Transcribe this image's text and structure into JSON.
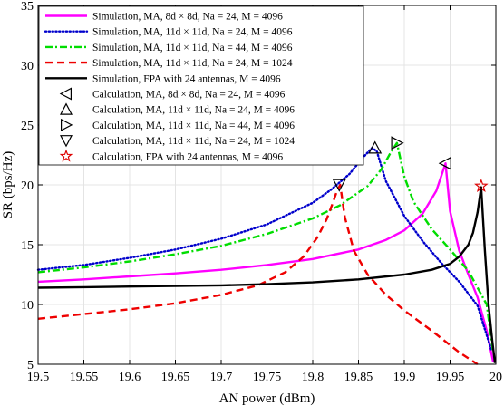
{
  "chart_data": {
    "type": "line",
    "xlabel": "AN power (dBm)",
    "ylabel": "SR (bps/Hz)",
    "xlim": [
      19.5,
      20
    ],
    "ylim": [
      5,
      35
    ],
    "xticks": [
      "19.5",
      "19.55",
      "19.6",
      "19.65",
      "19.7",
      "19.75",
      "19.8",
      "19.85",
      "19.9",
      "19.95",
      "20"
    ],
    "yticks": [
      "5",
      "10",
      "15",
      "20",
      "25",
      "30",
      "35"
    ],
    "grid": true,
    "legend_position": "top-left",
    "series": [
      {
        "name": "Simulation, MA, 8d × 8d, Na = 24, M = 4096",
        "color": "#ff00ff",
        "style": "solid",
        "x": [
          19.5,
          19.55,
          19.6,
          19.65,
          19.7,
          19.75,
          19.8,
          19.85,
          19.88,
          19.9,
          19.92,
          19.935,
          19.945,
          19.95,
          19.96,
          19.97,
          19.98,
          19.99,
          19.997
        ],
        "y": [
          11.9,
          12.1,
          12.35,
          12.6,
          12.9,
          13.3,
          13.8,
          14.6,
          15.4,
          16.2,
          17.6,
          19.5,
          21.8,
          17.8,
          14.5,
          12.5,
          10.6,
          7.8,
          5.2
        ]
      },
      {
        "name": "Simulation, MA, 11d × 11d, Na = 24, M = 4096",
        "color": "#0000cc",
        "style": "dotted",
        "x": [
          19.5,
          19.55,
          19.6,
          19.65,
          19.7,
          19.75,
          19.8,
          19.82,
          19.84,
          19.855,
          19.865,
          19.87,
          19.88,
          19.9,
          19.92,
          19.94,
          19.96,
          19.98,
          19.995
        ],
        "y": [
          12.9,
          13.3,
          13.9,
          14.6,
          15.5,
          16.7,
          18.5,
          19.6,
          20.9,
          22.3,
          23.1,
          22.8,
          20.3,
          17.4,
          15.3,
          13.5,
          11.9,
          9.9,
          6.2
        ]
      },
      {
        "name": "Simulation, MA, 11d × 11d, Na = 44, M = 4096",
        "color": "#00dd00",
        "style": "dashdot",
        "x": [
          19.5,
          19.55,
          19.6,
          19.65,
          19.7,
          19.75,
          19.8,
          19.83,
          19.86,
          19.875,
          19.885,
          19.892,
          19.9,
          19.91,
          19.93,
          19.95,
          19.97,
          19.99,
          19.997
        ],
        "y": [
          12.7,
          13.1,
          13.6,
          14.2,
          14.9,
          15.9,
          17.2,
          18.3,
          19.9,
          21.3,
          22.7,
          23.5,
          20.7,
          18.6,
          16.3,
          14.6,
          12.8,
          10.0,
          6.0
        ]
      },
      {
        "name": "Simulation, MA, 11d × 11d, Na = 24, M = 1024",
        "color": "#ee0000",
        "style": "dashed",
        "x": [
          19.5,
          19.55,
          19.6,
          19.65,
          19.7,
          19.74,
          19.77,
          19.79,
          19.805,
          19.815,
          19.822,
          19.826,
          19.83,
          19.835,
          19.845,
          19.86,
          19.88,
          19.9,
          19.93,
          19.96,
          19.98
        ],
        "y": [
          8.8,
          9.2,
          9.6,
          10.1,
          10.8,
          11.6,
          12.7,
          14.0,
          15.6,
          17.1,
          18.5,
          19.4,
          20.0,
          17.3,
          14.5,
          12.5,
          10.8,
          9.5,
          7.8,
          6.0,
          5.0
        ]
      },
      {
        "name": "Simulation, FPA with 24 antennas, M = 4096",
        "color": "#000000",
        "style": "solid",
        "x": [
          19.5,
          19.55,
          19.6,
          19.65,
          19.7,
          19.75,
          19.8,
          19.85,
          19.9,
          19.93,
          19.95,
          19.96,
          19.97,
          19.975,
          19.98,
          19.984,
          19.988,
          19.992,
          19.996,
          19.999
        ],
        "y": [
          11.4,
          11.45,
          11.5,
          11.55,
          11.6,
          11.7,
          11.85,
          12.1,
          12.5,
          12.9,
          13.4,
          14.0,
          15.0,
          16.0,
          17.7,
          19.8,
          14.5,
          10.0,
          7.0,
          5.1
        ]
      }
    ],
    "markers": [
      {
        "name": "Calculation, MA, 8d × 8d, Na = 24, M = 4096",
        "symbol": "triangle-left",
        "x": 19.945,
        "y": 21.8,
        "color": "#000000"
      },
      {
        "name": "Calculation, MA, 11d × 11d, Na = 24, M = 4096",
        "symbol": "triangle-up",
        "x": 19.868,
        "y": 23.1,
        "color": "#000000"
      },
      {
        "name": "Calculation, MA, 11d × 11d, Na = 44, M = 4096",
        "symbol": "triangle-right",
        "x": 19.892,
        "y": 23.5,
        "color": "#000000"
      },
      {
        "name": "Calculation, MA, 11d × 11d, Na = 24, M = 1024",
        "symbol": "triangle-down",
        "x": 19.829,
        "y": 20.0,
        "color": "#000000"
      },
      {
        "name": "Calculation, FPA with 24 antennas, M = 4096",
        "symbol": "star",
        "x": 19.984,
        "y": 19.9,
        "color": "#dd0000"
      }
    ]
  }
}
